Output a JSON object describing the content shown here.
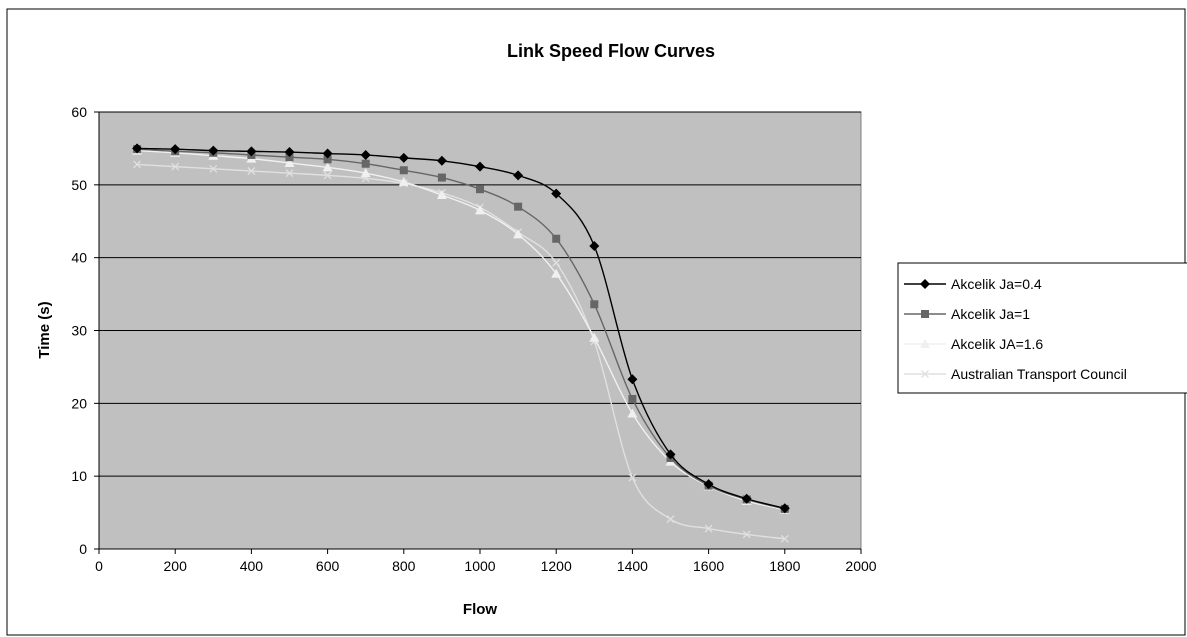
{
  "chart_data": {
    "type": "line",
    "title": "Link Speed Flow Curves",
    "xlabel": "Flow",
    "ylabel": "Time (s)",
    "xlim": [
      0,
      2000
    ],
    "ylim": [
      0,
      60
    ],
    "xticks": [
      0,
      200,
      400,
      600,
      800,
      1000,
      1200,
      1400,
      1600,
      1800,
      2000
    ],
    "yticks": [
      0,
      10,
      20,
      30,
      40,
      50,
      60
    ],
    "xtick_labels": [
      "0",
      "200",
      "400",
      "600",
      "800",
      "1000",
      "1200",
      "1400",
      "1600",
      "1800",
      "2000"
    ],
    "ytick_labels": [
      "0",
      "10",
      "20",
      "30",
      "40",
      "50",
      "60"
    ],
    "grid": "horizontal",
    "plot_background": "#c0c0c0",
    "legend_position": "right",
    "x": [
      100,
      200,
      300,
      400,
      500,
      600,
      700,
      800,
      900,
      1000,
      1100,
      1200,
      1300,
      1400,
      1500,
      1600,
      1700,
      1800
    ],
    "series": [
      {
        "name": "Akcelik Ja=0.4",
        "color": "#000000",
        "marker": "diamond",
        "values": [
          55.0,
          54.9,
          54.7,
          54.6,
          54.5,
          54.3,
          54.1,
          53.7,
          53.3,
          52.5,
          51.3,
          48.8,
          41.6,
          23.3,
          13.0,
          8.9,
          6.9,
          5.6
        ]
      },
      {
        "name": "Akcelik Ja=1",
        "color": "#666666",
        "marker": "square",
        "values": [
          54.9,
          54.6,
          54.4,
          54.1,
          53.8,
          53.5,
          52.9,
          52.0,
          51.0,
          49.4,
          47.0,
          42.6,
          33.6,
          20.6,
          12.5,
          8.7,
          6.8,
          5.5
        ]
      },
      {
        "name": "Akcelik JA=1.6",
        "color": "#f0f0f0",
        "marker": "triangle",
        "values": [
          54.7,
          54.4,
          54.0,
          53.6,
          53.0,
          52.4,
          51.6,
          50.4,
          48.6,
          46.5,
          43.2,
          37.8,
          29.0,
          18.6,
          12.0,
          8.6,
          6.6,
          5.4
        ]
      },
      {
        "name": "Australian Transport Council",
        "color": "#e0e0e0",
        "marker": "x",
        "values": [
          52.8,
          52.5,
          52.2,
          51.9,
          51.6,
          51.3,
          50.9,
          50.2,
          48.9,
          46.9,
          43.5,
          39.3,
          28.5,
          9.8,
          4.1,
          2.8,
          2.0,
          1.4
        ]
      }
    ]
  }
}
